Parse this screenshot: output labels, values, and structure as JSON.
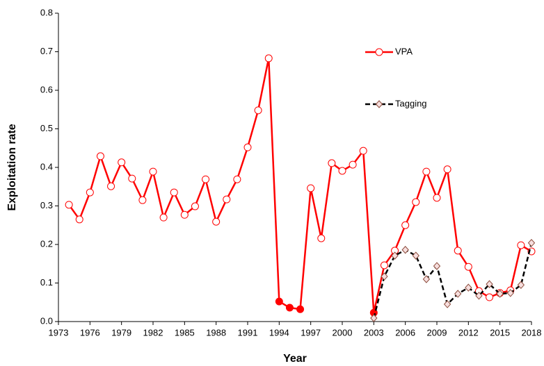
{
  "chart_data": {
    "type": "line",
    "x_label": "Year",
    "y_label": "Exploitation rate",
    "xlim": [
      1973,
      2018
    ],
    "xticks": [
      1973,
      1976,
      1979,
      1982,
      1985,
      1988,
      1991,
      1994,
      1997,
      2000,
      2003,
      2006,
      2009,
      2012,
      2015,
      2018
    ],
    "ylim": [
      0,
      0.8
    ],
    "yticks": [
      {
        "value": 0,
        "label": "0.0"
      },
      0.1,
      0.2,
      0.3,
      0.4,
      0.5,
      0.6,
      0.7,
      0.8
    ],
    "grid": false,
    "legend": "upper right",
    "series": [
      {
        "name": "VPA",
        "color": "#ff0000",
        "linestyle": "solid",
        "marker": "circle",
        "filled": [
          1994,
          1995,
          1996,
          2003
        ],
        "x": [
          1974,
          1975,
          1976,
          1977,
          1978,
          1979,
          1980,
          1981,
          1982,
          1983,
          1984,
          1985,
          1986,
          1987,
          1988,
          1989,
          1990,
          1991,
          1992,
          1993,
          1994,
          1995,
          1996,
          1997,
          1998,
          1999,
          2000,
          2001,
          2002,
          2003,
          2004,
          2005,
          2006,
          2007,
          2008,
          2009,
          2010,
          2011,
          2012,
          2013,
          2014,
          2015,
          2016,
          2017,
          2018
        ],
        "values": [
          0.303,
          0.265,
          0.335,
          0.429,
          0.351,
          0.413,
          0.371,
          0.315,
          0.389,
          0.27,
          0.335,
          0.277,
          0.299,
          0.369,
          0.259,
          0.317,
          0.369,
          0.452,
          0.548,
          0.683,
          0.052,
          0.036,
          0.032,
          0.346,
          0.216,
          0.411,
          0.391,
          0.407,
          0.443,
          0.023,
          0.146,
          0.184,
          0.25,
          0.31,
          0.389,
          0.321,
          0.395,
          0.184,
          0.142,
          0.079,
          0.063,
          0.074,
          0.081,
          0.198,
          0.182
        ]
      },
      {
        "name": "Tagging",
        "color": "#000000",
        "linestyle": "dashed",
        "marker": "diamond",
        "x": [
          2003,
          2004,
          2005,
          2006,
          2007,
          2008,
          2009,
          2010,
          2011,
          2012,
          2013,
          2014,
          2015,
          2016,
          2017,
          2018
        ],
        "values": [
          0.009,
          0.117,
          0.171,
          0.186,
          0.171,
          0.11,
          0.144,
          0.045,
          0.072,
          0.088,
          0.067,
          0.097,
          0.072,
          0.074,
          0.095,
          0.204
        ]
      }
    ]
  }
}
